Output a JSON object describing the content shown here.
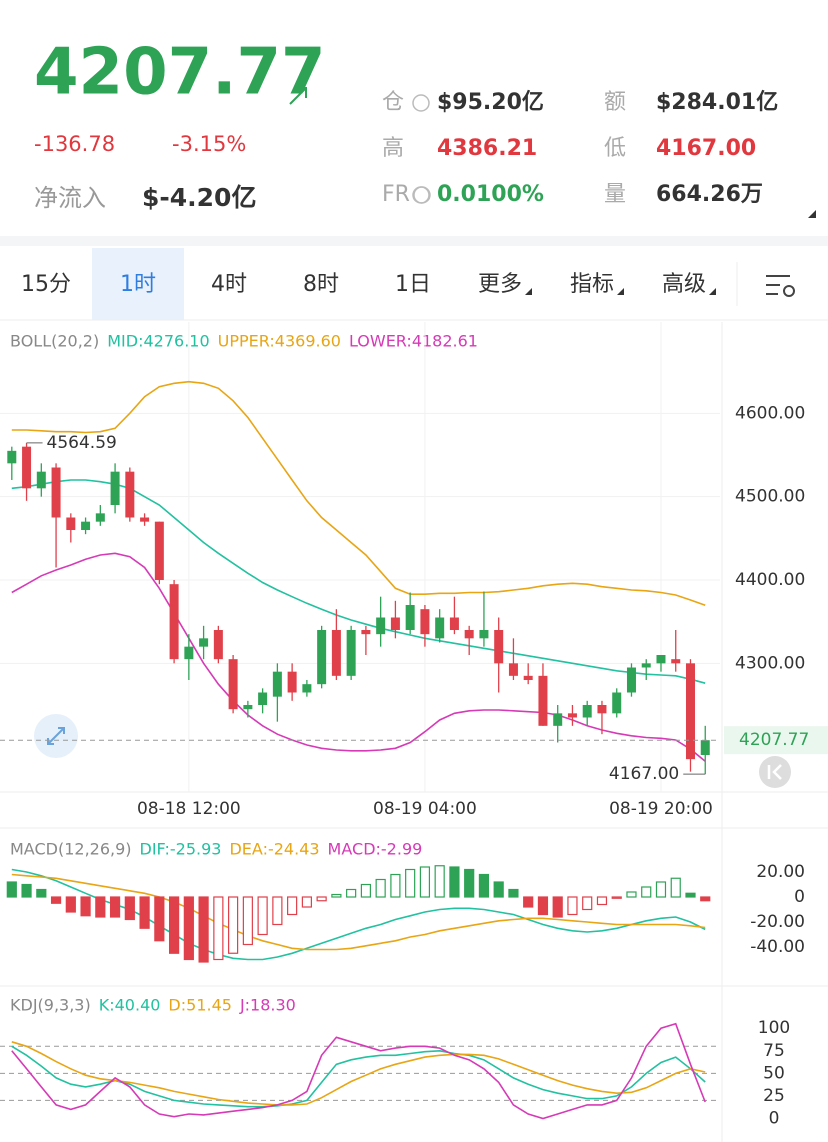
{
  "header": {
    "price": "4207.77",
    "change": "-136.78",
    "change_pct": "-3.15%",
    "netflow_label": "净流入",
    "netflow": "$-4.20亿",
    "stats": [
      {
        "label": "仓",
        "value": "$95.20亿",
        "color": "#333333"
      },
      {
        "label": "额",
        "value": "$284.01亿",
        "color": "#333333"
      },
      {
        "label": "高",
        "value": "4386.21",
        "color": "#e0383e"
      },
      {
        "label": "低",
        "value": "4167.00",
        "color": "#e0383e"
      },
      {
        "label": "FR",
        "value": "0.0100%",
        "color": "#2ea356"
      },
      {
        "label": "量",
        "value": "664.26万",
        "color": "#333333"
      }
    ]
  },
  "tabs": {
    "items": [
      "15分",
      "1时",
      "4时",
      "8时",
      "1日",
      "更多",
      "指标",
      "高级"
    ],
    "active": 1
  },
  "chart_data": [
    {
      "type": "candlestick",
      "title": "BOLL(20,2)",
      "grid": true,
      "xlim": [
        -0.8,
        48.0
      ],
      "xticks": [
        {
          "value": 12,
          "label": "08-18 12:00"
        },
        {
          "value": 28,
          "label": "08-19 04:00"
        },
        {
          "value": 44,
          "label": "08-19 20:00"
        }
      ],
      "ylim": [
        4148,
        4670
      ],
      "yticks": [
        {
          "value": 4600,
          "label": "4600.00"
        },
        {
          "value": 4500,
          "label": "4500.00"
        },
        {
          "value": 4400,
          "label": "4400.00"
        },
        {
          "value": 4300,
          "label": "4300.00"
        }
      ],
      "up_color": "#2ea356",
      "down_color": "#e0404a",
      "open": [
        4540,
        4560,
        4510,
        4535,
        4475,
        4460,
        4470,
        4490,
        4530,
        4475,
        4470,
        4395,
        4305,
        4320,
        4340,
        4305,
        4245,
        4250,
        4260,
        4290,
        4265,
        4275,
        4340,
        4285,
        4340,
        4335,
        4355,
        4340,
        4365,
        4330,
        4355,
        4340,
        4330,
        4340,
        4300,
        4285,
        4285,
        4225,
        4240,
        4235,
        4250,
        4240,
        4265,
        4295,
        4300,
        4305,
        4300,
        4190
      ],
      "high": [
        4560,
        4564.59,
        4540,
        4540,
        4480,
        4475,
        4490,
        4540,
        4535,
        4480,
        4470,
        4400,
        4335,
        4345,
        4345,
        4310,
        4255,
        4270,
        4300,
        4300,
        4280,
        4345,
        4365,
        4345,
        4345,
        4380,
        4375,
        4385,
        4370,
        4365,
        4380,
        4345,
        4386.21,
        4355,
        4330,
        4300,
        4300,
        4250,
        4250,
        4255,
        4255,
        4270,
        4300,
        4305,
        4310,
        4340,
        4305,
        4225
      ],
      "low": [
        4520,
        4495,
        4500,
        4415,
        4445,
        4455,
        4465,
        4480,
        4470,
        4465,
        4395,
        4300,
        4280,
        4305,
        4300,
        4240,
        4235,
        4240,
        4230,
        4255,
        4260,
        4270,
        4280,
        4280,
        4310,
        4320,
        4330,
        4335,
        4320,
        4325,
        4335,
        4310,
        4320,
        4265,
        4280,
        4275,
        4225,
        4205,
        4225,
        4225,
        4215,
        4235,
        4260,
        4280,
        4290,
        4290,
        4170,
        4167
      ],
      "close": [
        4555,
        4510,
        4530,
        4475,
        4460,
        4470,
        4480,
        4530,
        4475,
        4470,
        4400,
        4305,
        4320,
        4330,
        4305,
        4245,
        4250,
        4265,
        4290,
        4265,
        4275,
        4340,
        4285,
        4340,
        4335,
        4355,
        4340,
        4370,
        4335,
        4355,
        4340,
        4330,
        4340,
        4300,
        4285,
        4280,
        4225,
        4240,
        4235,
        4250,
        4240,
        4265,
        4295,
        4300,
        4310,
        4300,
        4185,
        4207.77
      ],
      "annotations": [
        "4564.59",
        "4167.00"
      ],
      "series": [
        {
          "name": "MID:4276.10",
          "color": "#22c1a0",
          "values": [
            4510,
            4512,
            4515,
            4518,
            4520,
            4520,
            4518,
            4515,
            4510,
            4500,
            4490,
            4475,
            4460,
            4445,
            4432,
            4420,
            4408,
            4397,
            4388,
            4380,
            4372,
            4365,
            4358,
            4352,
            4347,
            4342,
            4338,
            4334,
            4330,
            4327,
            4324,
            4321,
            4318,
            4315,
            4312,
            4309,
            4306,
            4303,
            4300,
            4297,
            4294,
            4291,
            4289,
            4287,
            4286,
            4285,
            4281,
            4276.1
          ]
        },
        {
          "name": "UPPER:4369.60",
          "color": "#e8a514",
          "values": [
            4580,
            4580,
            4579,
            4578,
            4578,
            4577,
            4578,
            4582,
            4600,
            4620,
            4632,
            4636,
            4638,
            4636,
            4630,
            4615,
            4595,
            4570,
            4545,
            4520,
            4495,
            4475,
            4460,
            4445,
            4430,
            4410,
            4390,
            4383,
            4383,
            4384,
            4384,
            4385,
            4385,
            4386,
            4388,
            4390,
            4393,
            4395,
            4396,
            4395,
            4392,
            4390,
            4388,
            4387,
            4385,
            4382,
            4376,
            4369.6
          ]
        },
        {
          "name": "LOWER:4182.61",
          "color": "#d63ab7",
          "values": [
            4385,
            4395,
            4405,
            4412,
            4418,
            4425,
            4430,
            4432,
            4428,
            4415,
            4390,
            4360,
            4330,
            4300,
            4275,
            4255,
            4238,
            4225,
            4215,
            4208,
            4202,
            4198,
            4196,
            4195,
            4195,
            4196,
            4198,
            4205,
            4218,
            4232,
            4240,
            4243,
            4244,
            4244,
            4243,
            4242,
            4241,
            4238,
            4232,
            4225,
            4220,
            4216,
            4213,
            4211,
            4210,
            4208,
            4197,
            4182.61
          ]
        }
      ]
    },
    {
      "type": "bar",
      "title": "MACD(12,26,9)",
      "grid": false,
      "xlim": [
        -0.8,
        48.0
      ],
      "ylim": [
        -68,
        28
      ],
      "yticks": [
        {
          "value": 20,
          "label": "20.00"
        },
        0,
        {
          "value": -20,
          "label": "-20.00"
        },
        {
          "value": -40,
          "label": "-40.00"
        }
      ],
      "up_color": "#2ea356",
      "down_color": "#e0404a",
      "series": [
        {
          "name": "DIF:-25.93",
          "color": "#22c1a0",
          "type": "line",
          "values": [
            22,
            20,
            17,
            13,
            8,
            3,
            -2,
            -6,
            -10,
            -16,
            -23,
            -30,
            -37,
            -42,
            -46,
            -49,
            -50,
            -50,
            -48,
            -45,
            -41,
            -37,
            -33,
            -29,
            -25,
            -22,
            -18,
            -15,
            -12,
            -10,
            -9,
            -9,
            -10,
            -12,
            -14,
            -18,
            -22,
            -25,
            -27,
            -28,
            -27,
            -25,
            -22,
            -19,
            -17,
            -16,
            -20,
            -25.93
          ]
        },
        {
          "name": "DEA:-24.43",
          "color": "#e8a514",
          "type": "line",
          "values": [
            18,
            17,
            16,
            15,
            13,
            11,
            9,
            7,
            5,
            3,
            0,
            -4,
            -9,
            -15,
            -21,
            -26,
            -31,
            -35,
            -38,
            -41,
            -42,
            -42,
            -42,
            -41,
            -39,
            -37,
            -35,
            -32,
            -30,
            -27,
            -25,
            -23,
            -21,
            -19,
            -18,
            -17,
            -17,
            -18,
            -19,
            -20,
            -21,
            -22,
            -22,
            -22,
            -22,
            -22,
            -23,
            -24.43
          ]
        },
        {
          "name": "MACD:-2.99",
          "color": "#d63ab7",
          "type": "bar",
          "values": [
            12,
            10,
            6,
            -5,
            -12,
            -15,
            -16,
            -16,
            -18,
            -25,
            -35,
            -45,
            -50,
            -52,
            -50,
            -45,
            -38,
            -30,
            -22,
            -14,
            -8,
            -3,
            2,
            6,
            10,
            14,
            18,
            22,
            24,
            25,
            24,
            22,
            18,
            12,
            6,
            -8,
            -14,
            -16,
            -14,
            -10,
            -6,
            -1,
            4,
            8,
            12,
            15,
            3,
            -2.99
          ]
        }
      ]
    },
    {
      "type": "line",
      "title": "KDJ(9,3,3)",
      "grid": false,
      "xlim": [
        -0.8,
        48.0
      ],
      "ylim": [
        -15,
        118
      ],
      "yticks": [
        100,
        75,
        50,
        25,
        0
      ],
      "guides": [
        80,
        50,
        20
      ],
      "series": [
        {
          "name": "K:40.40",
          "color": "#22c1a0",
          "values": [
            80,
            70,
            58,
            45,
            38,
            35,
            38,
            42,
            38,
            30,
            25,
            20,
            18,
            16,
            15,
            14,
            13,
            13,
            14,
            16,
            20,
            40,
            60,
            65,
            68,
            70,
            70,
            72,
            74,
            75,
            72,
            70,
            65,
            55,
            45,
            38,
            32,
            28,
            25,
            22,
            22,
            25,
            35,
            50,
            62,
            68,
            55,
            40.4
          ]
        },
        {
          "name": "D:51.45",
          "color": "#e8a514",
          "values": [
            85,
            80,
            72,
            63,
            55,
            48,
            44,
            42,
            40,
            37,
            34,
            30,
            27,
            24,
            21,
            19,
            17,
            16,
            15,
            15,
            16,
            23,
            32,
            41,
            48,
            55,
            60,
            64,
            68,
            70,
            71,
            71,
            70,
            66,
            60,
            54,
            48,
            42,
            37,
            33,
            30,
            28,
            29,
            34,
            42,
            50,
            55,
            51.45
          ]
        },
        {
          "name": "J:18.30",
          "color": "#d63ab7",
          "values": [
            75,
            55,
            35,
            15,
            10,
            15,
            30,
            45,
            35,
            15,
            5,
            2,
            5,
            4,
            6,
            8,
            10,
            12,
            15,
            20,
            30,
            70,
            90,
            85,
            80,
            75,
            78,
            80,
            80,
            78,
            70,
            65,
            55,
            40,
            15,
            5,
            0,
            5,
            10,
            15,
            15,
            20,
            45,
            80,
            100,
            105,
            60,
            18.3
          ]
        }
      ]
    }
  ]
}
